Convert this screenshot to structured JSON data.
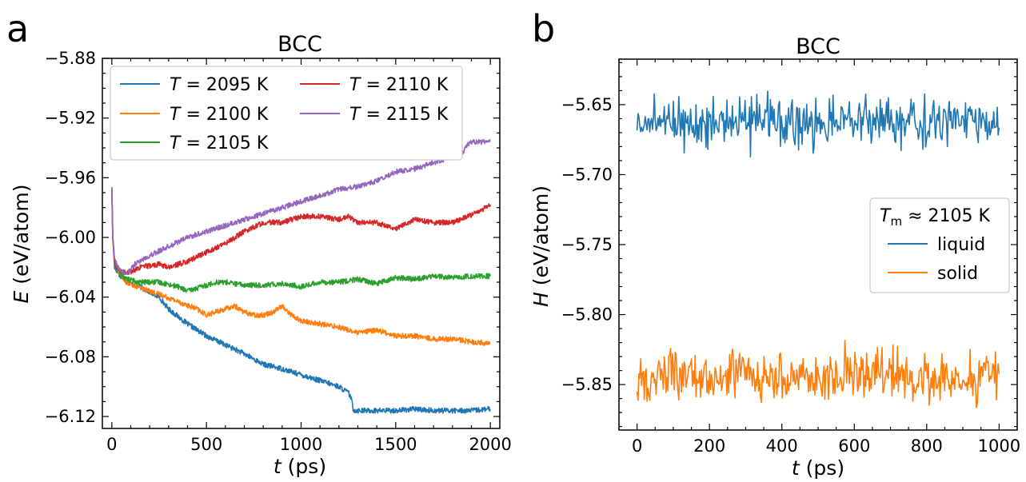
{
  "chart_data": [
    {
      "panel_label": "a",
      "type": "line",
      "title": "BCC",
      "xlabel_var": "t",
      "xlabel_unit": "(ps)",
      "ylabel_var": "E",
      "ylabel_unit": "(eV/atom)",
      "xlim": [
        -50,
        2050
      ],
      "ylim": [
        -6.128,
        -5.88
      ],
      "xticks": [
        0,
        500,
        1000,
        1500,
        2000
      ],
      "xtick_labels": [
        "0",
        "500",
        "1000",
        "1500",
        "2000"
      ],
      "yticks": [
        -5.88,
        -5.92,
        -5.96,
        -6.0,
        -6.04,
        -6.08,
        -6.12
      ],
      "ytick_labels": [
        "−5.88",
        "−5.92",
        "−5.96",
        "−6.00",
        "−6.04",
        "−6.08",
        "−6.12"
      ],
      "legend_location": "upper-left",
      "legend_columns": 2,
      "grid": false,
      "series": [
        {
          "name_var": "T",
          "name_value": "= 2095 K",
          "color": "#1f77b4",
          "x": [
            0,
            5,
            15,
            40,
            80,
            150,
            250,
            300,
            400,
            500,
            600,
            700,
            800,
            900,
            1000,
            1100,
            1150,
            1200,
            1250,
            1265,
            1275,
            1285,
            1300,
            1400,
            1500,
            1600,
            1700,
            1800,
            1900,
            2000
          ],
          "y": [
            -5.966,
            -6.0,
            -6.02,
            -6.025,
            -6.03,
            -6.033,
            -6.04,
            -6.048,
            -6.058,
            -6.066,
            -6.072,
            -6.078,
            -6.085,
            -6.088,
            -6.092,
            -6.096,
            -6.098,
            -6.1,
            -6.104,
            -6.108,
            -6.115,
            -6.116,
            -6.116,
            -6.116,
            -6.116,
            -6.115,
            -6.116,
            -6.116,
            -6.116,
            -6.115
          ]
        },
        {
          "name_var": "T",
          "name_value": "= 2100 K",
          "color": "#ff7f0e",
          "x": [
            0,
            5,
            15,
            40,
            80,
            150,
            250,
            350,
            450,
            500,
            550,
            600,
            650,
            700,
            750,
            800,
            850,
            900,
            950,
            1000,
            1100,
            1200,
            1300,
            1400,
            1500,
            1600,
            1700,
            1800,
            1900,
            2000
          ],
          "y": [
            -5.966,
            -6.0,
            -6.018,
            -6.024,
            -6.03,
            -6.034,
            -6.038,
            -6.043,
            -6.048,
            -6.052,
            -6.05,
            -6.048,
            -6.046,
            -6.05,
            -6.052,
            -6.052,
            -6.05,
            -6.046,
            -6.052,
            -6.056,
            -6.058,
            -6.06,
            -6.064,
            -6.062,
            -6.066,
            -6.066,
            -6.068,
            -6.068,
            -6.07,
            -6.071
          ]
        },
        {
          "name_var": "T",
          "name_value": "= 2105 K",
          "color": "#2ca02c",
          "x": [
            0,
            5,
            15,
            40,
            80,
            150,
            250,
            350,
            400,
            450,
            500,
            550,
            600,
            700,
            800,
            900,
            1000,
            1100,
            1200,
            1300,
            1400,
            1500,
            1600,
            1700,
            1800,
            1900,
            2000
          ],
          "y": [
            -5.966,
            -6.0,
            -6.018,
            -6.024,
            -6.028,
            -6.03,
            -6.03,
            -6.033,
            -6.036,
            -6.034,
            -6.032,
            -6.03,
            -6.03,
            -6.032,
            -6.032,
            -6.031,
            -6.033,
            -6.03,
            -6.03,
            -6.028,
            -6.031,
            -6.027,
            -6.028,
            -6.026,
            -6.027,
            -6.026,
            -6.026
          ]
        },
        {
          "name_var": "T",
          "name_value": "= 2110 K",
          "color": "#d62728",
          "x": [
            0,
            5,
            15,
            40,
            80,
            150,
            250,
            300,
            400,
            500,
            600,
            700,
            800,
            900,
            1000,
            1100,
            1200,
            1250,
            1300,
            1400,
            1500,
            1600,
            1700,
            1800,
            1900,
            1950,
            2000
          ],
          "y": [
            -5.966,
            -6.0,
            -6.018,
            -6.022,
            -6.024,
            -6.02,
            -6.018,
            -6.02,
            -6.016,
            -6.01,
            -6.004,
            -5.996,
            -5.99,
            -5.99,
            -5.986,
            -5.986,
            -5.988,
            -5.986,
            -5.99,
            -5.99,
            -5.994,
            -5.988,
            -5.99,
            -5.99,
            -5.985,
            -5.982,
            -5.978
          ]
        },
        {
          "name_var": "T",
          "name_value": "= 2115 K",
          "color": "#9467bd",
          "x": [
            0,
            5,
            15,
            40,
            80,
            120,
            200,
            300,
            400,
            500,
            600,
            700,
            800,
            900,
            1000,
            1100,
            1200,
            1300,
            1400,
            1500,
            1600,
            1700,
            1800,
            1850,
            1880,
            1900,
            1950,
            2000
          ],
          "y": [
            -5.966,
            -6.0,
            -6.015,
            -6.022,
            -6.024,
            -6.018,
            -6.012,
            -6.006,
            -6.0,
            -5.996,
            -5.992,
            -5.988,
            -5.984,
            -5.98,
            -5.976,
            -5.972,
            -5.968,
            -5.966,
            -5.962,
            -5.956,
            -5.954,
            -5.95,
            -5.946,
            -5.944,
            -5.938,
            -5.936,
            -5.936,
            -5.935
          ]
        }
      ]
    },
    {
      "panel_label": "b",
      "type": "line",
      "title": "BCC",
      "xlabel_var": "t",
      "xlabel_unit": "(ps)",
      "ylabel_var": "H",
      "ylabel_unit": "(eV/atom)",
      "xlim": [
        -50,
        1050
      ],
      "ylim": [
        -5.8825,
        -5.6175
      ],
      "xticks": [
        0,
        200,
        400,
        600,
        800,
        1000
      ],
      "xtick_labels": [
        "0",
        "200",
        "400",
        "600",
        "800",
        "1000"
      ],
      "yticks": [
        -5.65,
        -5.7,
        -5.75,
        -5.8,
        -5.85
      ],
      "ytick_labels": [
        "−5.65",
        "−5.70",
        "−5.75",
        "−5.80",
        "−5.85"
      ],
      "legend_location": "center-right",
      "legend_title_var": "T",
      "legend_title_sub": "m",
      "legend_title_value": " ≈ 2105 K",
      "grid": false,
      "series": [
        {
          "name": "liquid",
          "color": "#1f77b4",
          "mean": -5.662,
          "x_start": 0,
          "x_end": 1000,
          "points": 400,
          "range": [
            -5.698,
            -5.633
          ]
        },
        {
          "name": "solid",
          "color": "#ff7f0e",
          "mean": -5.844,
          "x_start": 0,
          "x_end": 1000,
          "points": 400,
          "range": [
            -5.872,
            -5.808
          ]
        }
      ]
    }
  ]
}
